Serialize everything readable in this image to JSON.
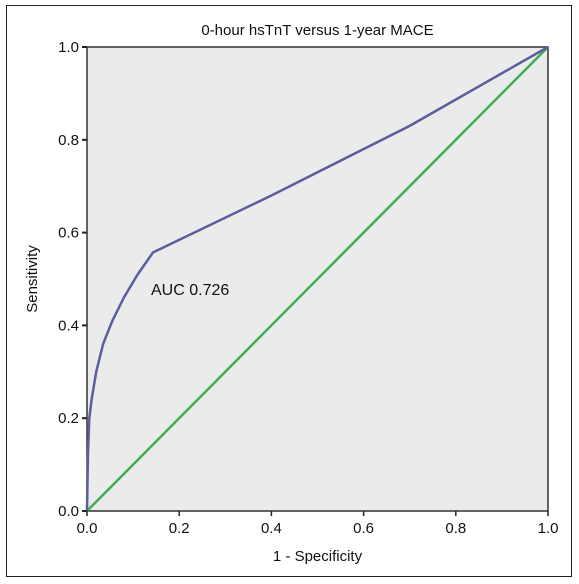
{
  "chart_data": {
    "type": "line",
    "title": "0-hour hsTnT versus 1-year MACE",
    "xlabel": "1 - Specificity",
    "ylabel": "Sensitivity",
    "xlim": [
      0,
      1
    ],
    "ylim": [
      0,
      1
    ],
    "x_ticks": [
      "0.0",
      "0.2",
      "0.4",
      "0.6",
      "0.8",
      "1.0"
    ],
    "y_ticks": [
      "0.0",
      "0.2",
      "0.4",
      "0.6",
      "0.8",
      "1.0"
    ],
    "annotation": "AUC 0.726",
    "grid": false,
    "series": [
      {
        "color": "#5b5f9e",
        "x": [
          0,
          0.002,
          0.005,
          0.01,
          0.02,
          0.035,
          0.055,
          0.08,
          0.11,
          0.143,
          0.4,
          0.7,
          1.0
        ],
        "y": [
          0,
          0.12,
          0.2,
          0.24,
          0.3,
          0.36,
          0.41,
          0.46,
          0.51,
          0.557,
          0.68,
          0.83,
          1.0
        ]
      },
      {
        "color": "#3fae55",
        "x": [
          0,
          1
        ],
        "y": [
          0,
          1
        ]
      }
    ],
    "plot_background": "#ebebeb"
  }
}
